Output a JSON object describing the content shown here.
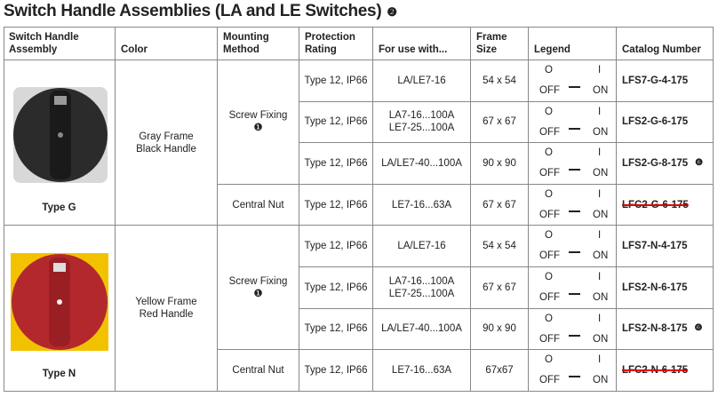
{
  "header": {
    "title": "Switch Handle Assemblies (LA and LE Switches)",
    "note": "❷"
  },
  "table": {
    "columns": [
      [
        "Switch Handle",
        "Assembly"
      ],
      [
        "Color"
      ],
      [
        "Mounting",
        "Method"
      ],
      [
        "Protection",
        "Rating"
      ],
      [
        "For use with..."
      ],
      [
        "Frame",
        "Size"
      ],
      [
        "Legend"
      ],
      [
        "Catalog Number"
      ]
    ],
    "legend": {
      "top_left": "O",
      "top_right": "I",
      "bottom_left": "OFF",
      "bottom_right": "ON"
    },
    "groups": [
      {
        "type": "Type G",
        "color": [
          "Gray Frame",
          "Black Handle"
        ],
        "mountings": [
          {
            "method": "Screw Fixing",
            "note": "❶",
            "rows": [
              {
                "protection": "Type 12, IP66",
                "use": [
                  "LA/LE7-16"
                ],
                "frame": "54 x 54",
                "catalog": "LFS7-G-4-175"
              },
              {
                "protection": "Type 12, IP66",
                "use": [
                  "LA7-16...100A",
                  "LE7-25...100A"
                ],
                "frame": "67 x 67",
                "catalog": "LFS2-G-6-175"
              },
              {
                "protection": "Type 12, IP66",
                "use": [
                  "LA/LE7-40...100A"
                ],
                "frame": "90 x 90",
                "catalog": "LFS2-G-8-175",
                "note": "❻"
              }
            ]
          },
          {
            "method": "Central Nut",
            "rows": [
              {
                "protection": "Type 12, IP66",
                "use": [
                  "LE7-16...63A"
                ],
                "frame": "67 x 67",
                "catalog": "LFC2-G-6-175",
                "struck": true
              }
            ]
          }
        ]
      },
      {
        "type": "Type N",
        "color": [
          "Yellow Frame",
          "Red Handle"
        ],
        "mountings": [
          {
            "method": "Screw Fixing",
            "note": "❶",
            "rows": [
              {
                "protection": "Type 12, IP66",
                "use": [
                  "LA/LE7-16"
                ],
                "frame": "54 x 54",
                "catalog": "LFS7-N-4-175"
              },
              {
                "protection": "Type 12, IP66",
                "use": [
                  "LA7-16...100A",
                  "LE7-25...100A"
                ],
                "frame": "67 x 67",
                "catalog": "LFS2-N-6-175"
              },
              {
                "protection": "Type 12, IP66",
                "use": [
                  "LA/LE7-40...100A"
                ],
                "frame": "90 x 90",
                "catalog": "LFS2-N-8-175",
                "note": "❻"
              }
            ]
          },
          {
            "method": "Central Nut",
            "rows": [
              {
                "protection": "Type 12, IP66",
                "use": [
                  "LE7-16...63A"
                ],
                "frame": "67x67",
                "catalog": "LFC2-N-6-175",
                "struck": true
              }
            ]
          }
        ]
      }
    ]
  }
}
